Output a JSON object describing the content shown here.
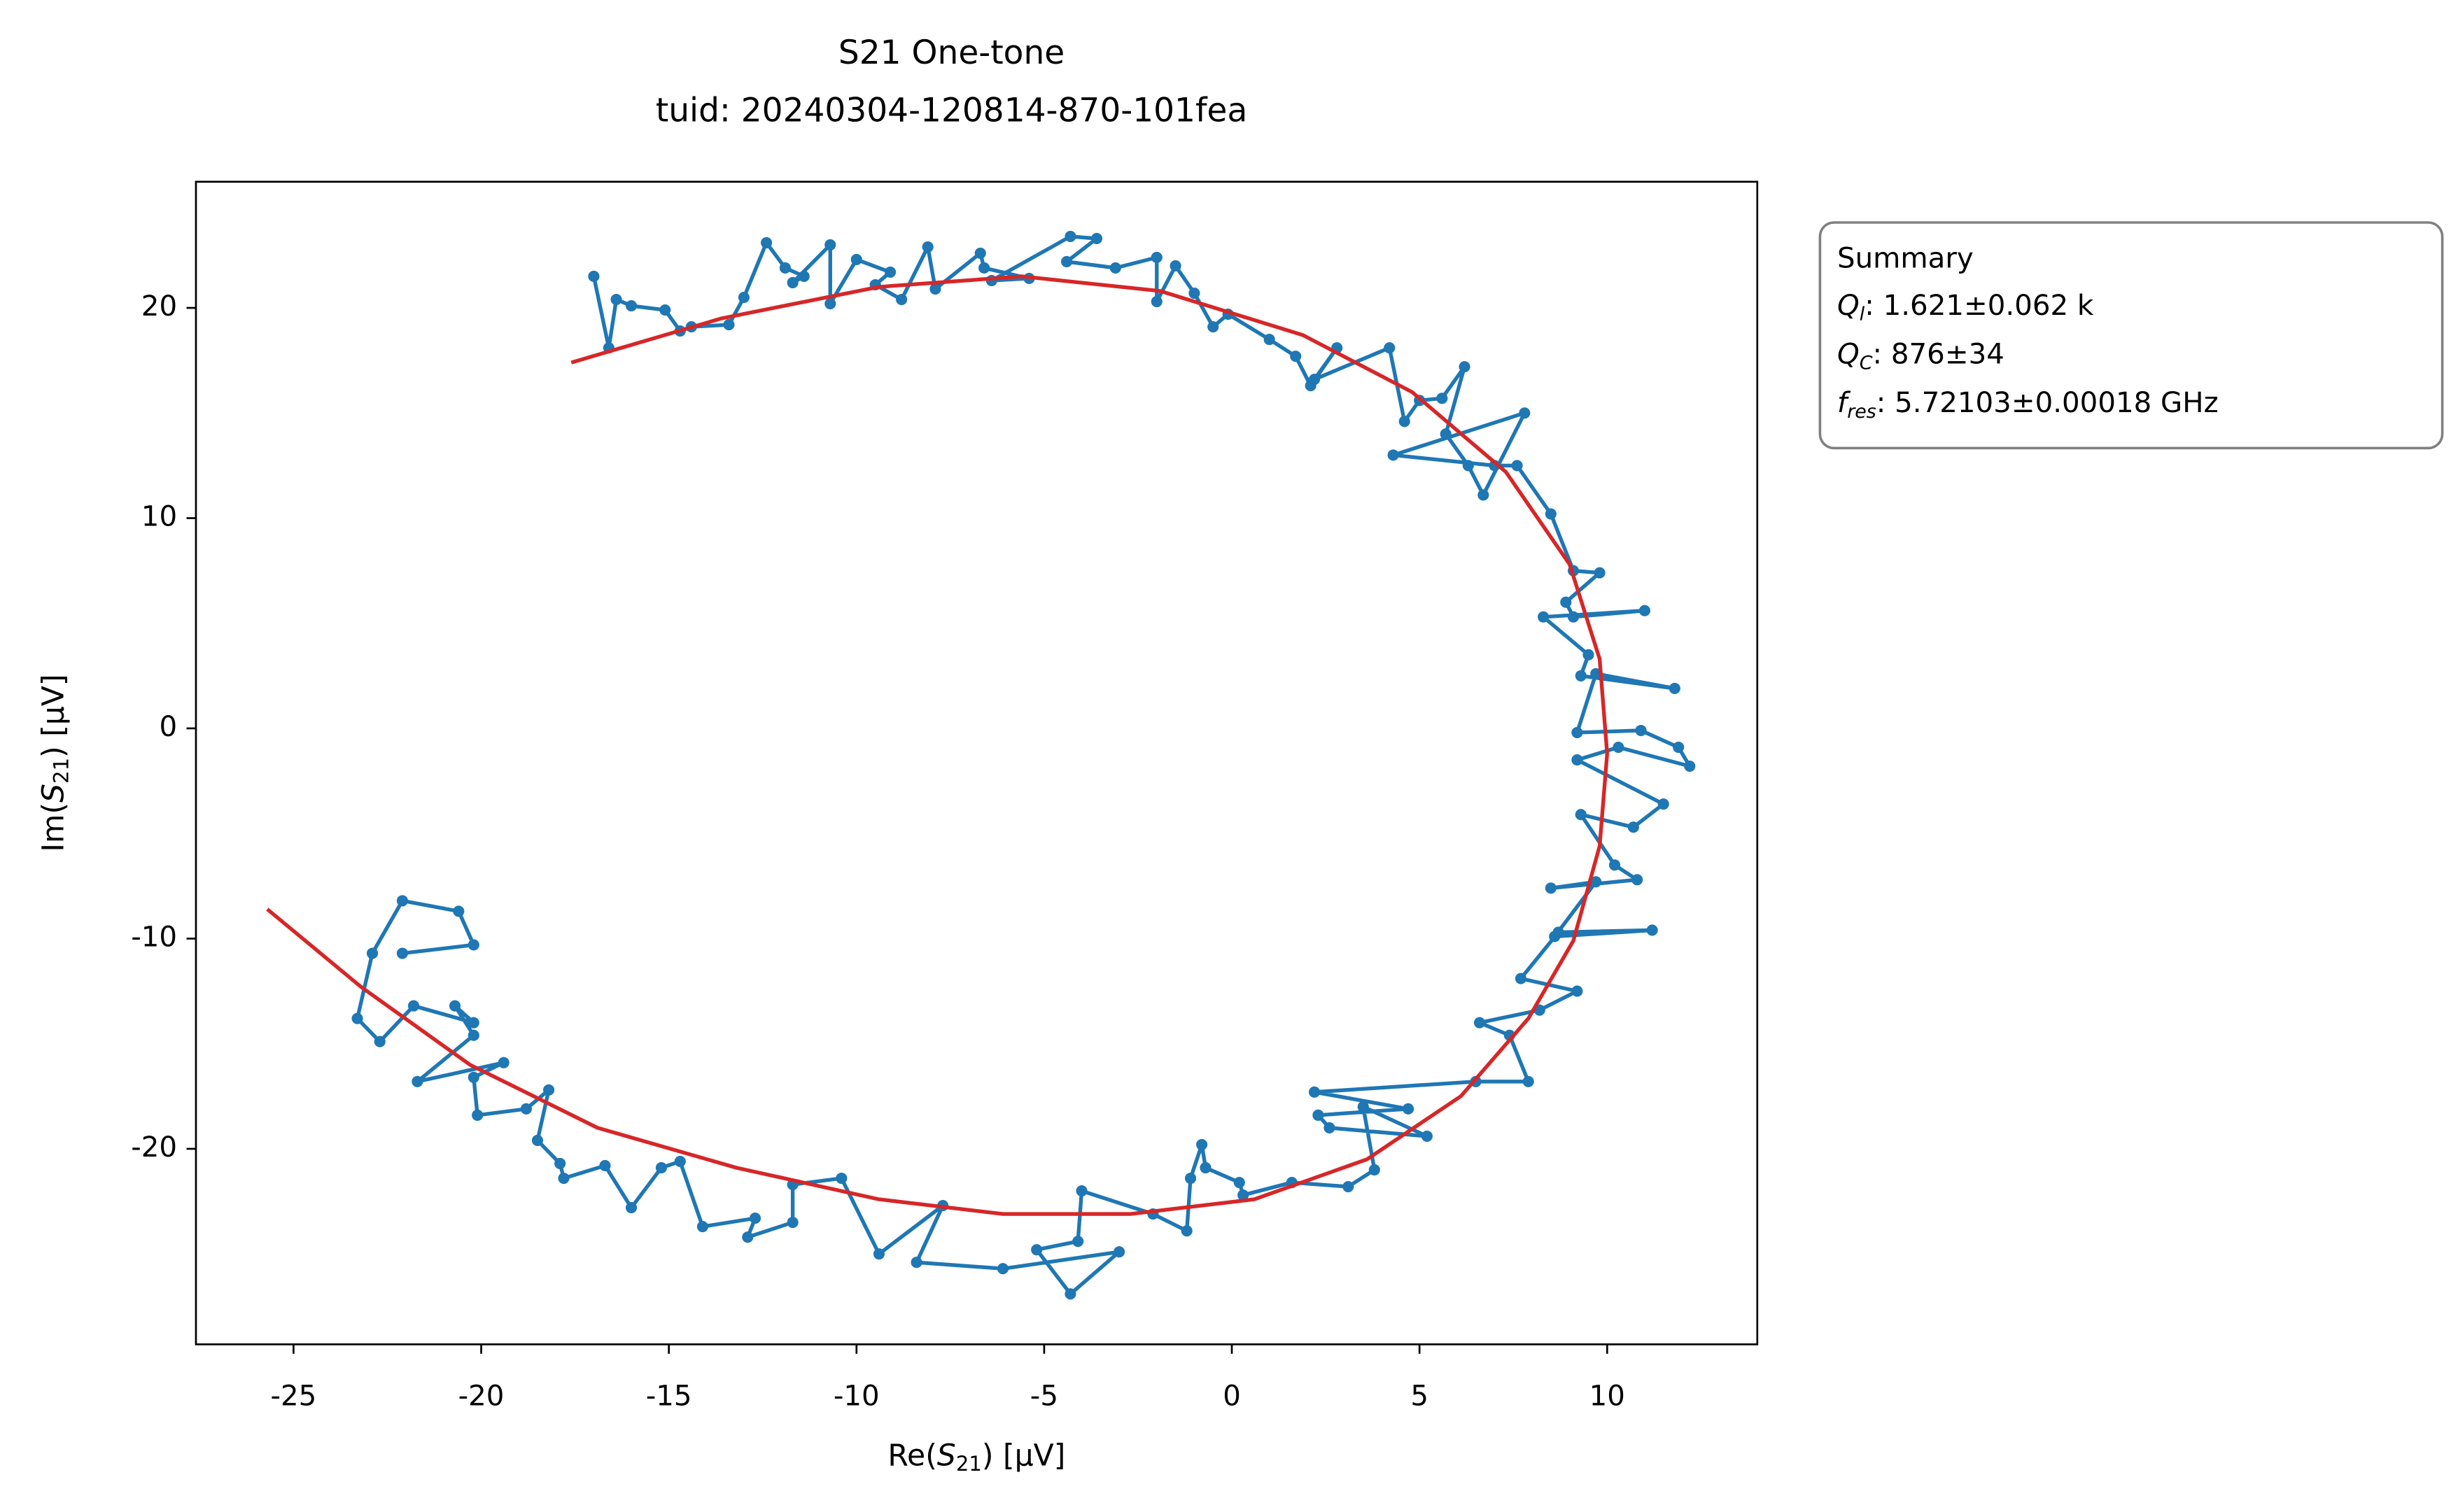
{
  "chart_data": {
    "type": "line",
    "title": "S21 One-tone",
    "subtitle": "tuid: 20240304-120814-870-101fea",
    "x_label": {
      "prefix": "Re(",
      "symbol": "S",
      "subscript": "21",
      "suffix": ") [µV]"
    },
    "y_label": {
      "prefix": "Im(",
      "symbol": "S",
      "subscript": "21",
      "suffix": ") [µV]"
    },
    "xlim": [
      -27.6,
      14.0
    ],
    "ylim": [
      -29.3,
      26.0
    ],
    "xticks": [
      -25,
      -20,
      -15,
      -10,
      -5,
      0,
      5,
      10
    ],
    "yticks": [
      -20,
      -10,
      0,
      10,
      20
    ],
    "grid": false,
    "series": [
      {
        "color": "#1f77b4",
        "markers": true,
        "x": [
          -17.0,
          -16.6,
          -16.4,
          -16.0,
          -15.1,
          -14.7,
          -14.4,
          -13.4,
          -13.0,
          -12.4,
          -11.9,
          -11.4,
          -11.7,
          -10.7,
          -10.7,
          -10.0,
          -9.1,
          -9.5,
          -8.8,
          -8.1,
          -7.9,
          -6.7,
          -6.6,
          -5.4,
          -6.4,
          -4.3,
          -3.6,
          -4.4,
          -3.1,
          -2.0,
          -2.0,
          -1.5,
          -1.0,
          -0.5,
          -0.1,
          1.0,
          1.7,
          2.1,
          2.8,
          2.2,
          4.2,
          4.6,
          5.0,
          5.6,
          6.2,
          5.7,
          6.3,
          6.7,
          7.8,
          4.3,
          7.0,
          7.6,
          8.5,
          9.1,
          9.8,
          8.9,
          9.1,
          11.0,
          8.3,
          9.5,
          9.3,
          11.8,
          9.7,
          9.2,
          10.9,
          11.9,
          12.2,
          10.3,
          9.2,
          11.5,
          10.7,
          9.3,
          10.2,
          10.8,
          8.5,
          9.7,
          8.6,
          11.2,
          8.7,
          7.7,
          9.2,
          8.2,
          6.6,
          7.4,
          7.9,
          6.5,
          2.2,
          4.7,
          2.3,
          2.6,
          5.2,
          3.5,
          3.8,
          3.1,
          1.6,
          0.3,
          0.2,
          -0.7,
          -0.8,
          -1.1,
          -1.2,
          -2.1,
          -4.0,
          -4.1,
          -5.2,
          -4.3,
          -3.0,
          -6.1,
          -8.4,
          -7.7,
          -9.4,
          -10.4,
          -11.7,
          -11.7,
          -12.9,
          -12.7,
          -14.1,
          -14.7,
          -15.2,
          -16.0,
          -16.7,
          -17.8,
          -17.9,
          -18.5,
          -18.2,
          -18.8,
          -20.1,
          -20.2,
          -19.4,
          -21.7,
          -20.2,
          -20.7,
          -20.2,
          -21.8,
          -22.7,
          -23.3,
          -22.9,
          -22.1,
          -20.6,
          -20.2,
          -22.1
        ],
        "values": [
          21.5,
          18.1,
          20.4,
          20.1,
          19.9,
          18.9,
          19.1,
          19.2,
          20.5,
          23.1,
          21.9,
          21.5,
          21.2,
          23.0,
          20.2,
          22.3,
          21.7,
          21.1,
          20.4,
          22.9,
          20.9,
          22.6,
          21.9,
          21.4,
          21.3,
          23.4,
          23.3,
          22.2,
          21.9,
          22.4,
          20.3,
          22.0,
          20.7,
          19.1,
          19.7,
          18.5,
          17.7,
          16.3,
          18.1,
          16.6,
          18.1,
          14.6,
          15.6,
          15.7,
          17.2,
          14.0,
          12.5,
          11.1,
          15.0,
          13.0,
          12.5,
          12.5,
          10.2,
          7.5,
          7.4,
          6.0,
          5.3,
          5.6,
          5.3,
          3.5,
          2.5,
          1.9,
          2.6,
          -0.2,
          -0.1,
          -0.9,
          -1.8,
          -0.9,
          -1.5,
          -3.6,
          -4.7,
          -4.1,
          -6.5,
          -7.2,
          -7.6,
          -7.3,
          -9.9,
          -9.6,
          -9.7,
          -11.9,
          -12.5,
          -13.4,
          -14.0,
          -14.6,
          -16.8,
          -16.8,
          -17.3,
          -18.1,
          -18.4,
          -19.0,
          -19.4,
          -18.0,
          -21.0,
          -21.8,
          -21.6,
          -22.2,
          -21.6,
          -20.9,
          -19.8,
          -21.4,
          -23.9,
          -23.1,
          -22.0,
          -24.4,
          -24.8,
          -26.9,
          -24.9,
          -25.7,
          -25.4,
          -22.7,
          -25.0,
          -21.4,
          -21.7,
          -23.5,
          -24.2,
          -23.3,
          -23.7,
          -20.6,
          -20.9,
          -22.8,
          -20.8,
          -21.4,
          -20.7,
          -19.6,
          -17.2,
          -18.1,
          -18.4,
          -16.6,
          -15.9,
          -16.8,
          -14.6,
          -13.2,
          -14.0,
          -13.2,
          -14.9,
          -13.8,
          -10.7,
          -8.2,
          -8.7,
          -10.3,
          -10.7
        ]
      },
      {
        "color": "#d62728",
        "markers": false,
        "x": [
          -17.6,
          -13.6,
          -9.4,
          -5.6,
          -1.9,
          1.9,
          4.8,
          7.3,
          9.0,
          9.8,
          10.0,
          9.8,
          9.1,
          7.9,
          6.1,
          3.6,
          0.6,
          -2.7,
          -6.1,
          -9.4,
          -13.2,
          -16.9,
          -20.3,
          -23.2,
          -25.7
        ],
        "values": [
          17.4,
          19.5,
          21.0,
          21.5,
          20.8,
          18.7,
          16.0,
          12.2,
          7.8,
          3.3,
          -1.2,
          -5.6,
          -10.1,
          -13.8,
          -17.5,
          -20.5,
          -22.4,
          -23.1,
          -23.1,
          -22.4,
          -20.9,
          -19.0,
          -16.0,
          -12.3,
          -8.6
        ]
      }
    ],
    "summary": {
      "title": "Summary",
      "lines": [
        {
          "symbol": "Q",
          "subscript": "l",
          "text": ": 1.621±0.062 k"
        },
        {
          "symbol": "Q",
          "subscript": "C",
          "text": ": 876±34"
        },
        {
          "symbol": "f",
          "subscript": "res",
          "text": ": 5.72103±0.00018 GHz"
        }
      ]
    }
  }
}
